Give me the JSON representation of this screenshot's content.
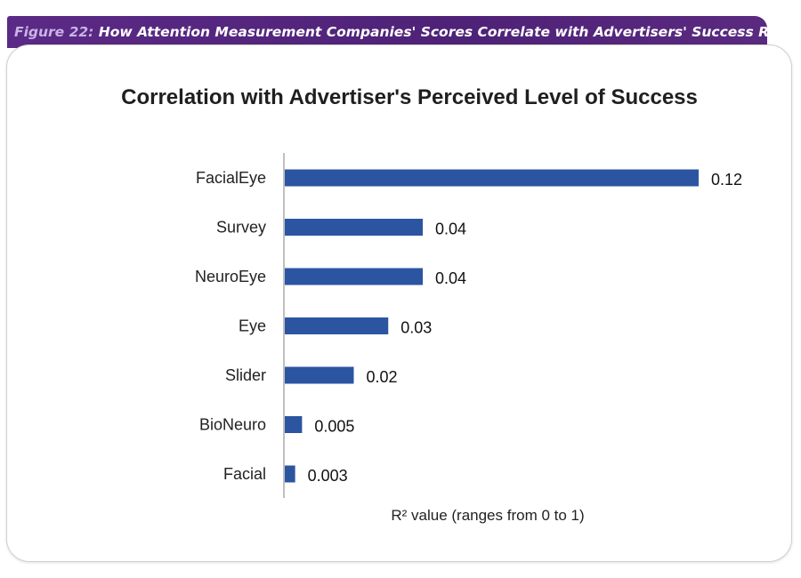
{
  "figure": {
    "number": "Figure 22:",
    "caption": "How Attention Measurement Companies' Scores Correlate with Advertisers' Success Ratings"
  },
  "colors": {
    "banner": "#5b2a86",
    "bar": "#2b55a0",
    "axis": "#7f7f7f"
  },
  "chart_data": {
    "type": "bar",
    "orientation": "horizontal",
    "title": "Correlation with Advertiser's Perceived Level of Success",
    "xlabel": "R² value (ranges from 0 to 1)",
    "ylabel": "",
    "categories": [
      "FacialEye",
      "Survey",
      "NeuroEye",
      "Eye",
      "Slider",
      "BioNeuro",
      "Facial"
    ],
    "values": [
      0.12,
      0.04,
      0.04,
      0.03,
      0.02,
      0.005,
      0.003
    ],
    "value_labels": [
      "0.12",
      "0.04",
      "0.04",
      "0.03",
      "0.02",
      "0.005",
      "0.003"
    ],
    "xlim": [
      0,
      0.12
    ],
    "grid": false,
    "legend": "none"
  }
}
